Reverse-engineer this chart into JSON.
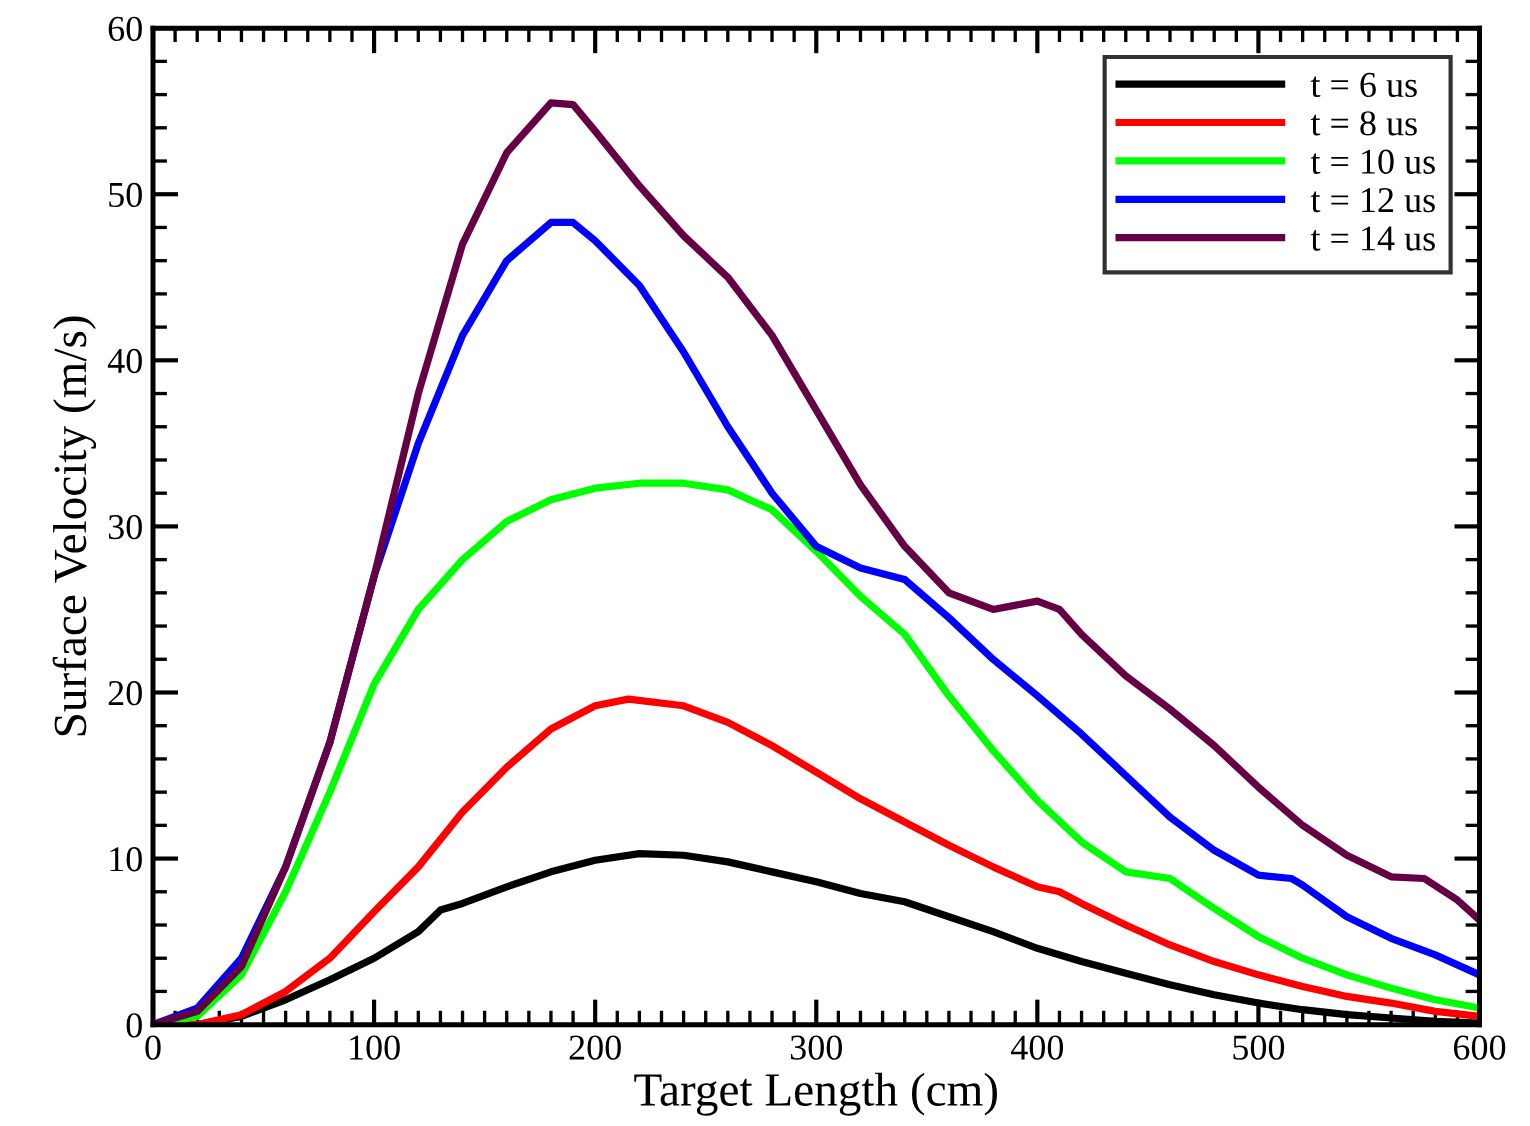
{
  "chart_data": {
    "type": "line",
    "xlabel": "Target Length (cm)",
    "ylabel": "Surface Velocity (m/s)",
    "xlim": [
      0,
      600
    ],
    "ylim": [
      0,
      60
    ],
    "xticks": [
      0,
      100,
      200,
      300,
      400,
      500,
      600
    ],
    "yticks": [
      0,
      10,
      20,
      30,
      40,
      50,
      60
    ],
    "grid": false,
    "legend": "top right",
    "marker": "none",
    "series": [
      {
        "name": "t = 6 us",
        "color": "#000000",
        "x": [
          0,
          20,
          40,
          60,
          80,
          100,
          120,
          130,
          140,
          160,
          180,
          200,
          220,
          240,
          260,
          280,
          300,
          320,
          340,
          360,
          380,
          400,
          420,
          440,
          460,
          480,
          500,
          520,
          540,
          560,
          580,
          600
        ],
        "values": [
          0,
          0,
          0.5,
          1.5,
          2.7,
          4.0,
          5.6,
          6.9,
          7.3,
          8.3,
          9.2,
          9.9,
          10.3,
          10.2,
          9.8,
          9.2,
          8.6,
          7.9,
          7.4,
          6.5,
          5.6,
          4.6,
          3.8,
          3.1,
          2.4,
          1.8,
          1.3,
          0.9,
          0.6,
          0.4,
          0.2,
          0.1
        ]
      },
      {
        "name": "t = 8 us",
        "color": "#ff0000",
        "x": [
          0,
          20,
          40,
          60,
          80,
          100,
          120,
          140,
          160,
          180,
          200,
          215,
          240,
          260,
          280,
          300,
          320,
          340,
          360,
          380,
          400,
          410,
          420,
          440,
          460,
          480,
          500,
          520,
          540,
          560,
          580,
          600
        ],
        "values": [
          0,
          0,
          0.6,
          2,
          4,
          6.8,
          9.5,
          12.8,
          15.5,
          17.8,
          19.2,
          19.6,
          19.2,
          18.2,
          16.8,
          15.2,
          13.6,
          12.2,
          10.8,
          9.5,
          8.3,
          8.0,
          7.3,
          6.0,
          4.8,
          3.8,
          3.0,
          2.3,
          1.7,
          1.3,
          0.8,
          0.5
        ]
      },
      {
        "name": "t = 10 us",
        "color": "#00ff00",
        "x": [
          0,
          20,
          40,
          60,
          80,
          100,
          120,
          140,
          160,
          180,
          200,
          220,
          240,
          260,
          280,
          300,
          320,
          340,
          360,
          380,
          400,
          420,
          440,
          460,
          480,
          500,
          520,
          540,
          560,
          580,
          600
        ],
        "values": [
          0,
          0.5,
          3,
          8,
          14,
          20.5,
          25,
          28,
          30.3,
          31.6,
          32.3,
          32.6,
          32.6,
          32.2,
          31,
          28.5,
          25.8,
          23.5,
          19.8,
          16.5,
          13.5,
          11.0,
          9.2,
          8.8,
          7.0,
          5.3,
          4.0,
          3.0,
          2.2,
          1.5,
          1.0
        ]
      },
      {
        "name": "t = 12 us",
        "color": "#0000ff",
        "x": [
          0,
          20,
          40,
          60,
          80,
          100,
          120,
          140,
          160,
          180,
          190,
          200,
          220,
          240,
          260,
          280,
          300,
          320,
          340,
          360,
          380,
          400,
          420,
          440,
          460,
          480,
          500,
          515,
          520,
          540,
          560,
          580,
          600
        ],
        "values": [
          0,
          1,
          4,
          9.5,
          17,
          27,
          35,
          41.5,
          46,
          48.3,
          48.3,
          47.2,
          44.5,
          40.5,
          36,
          32,
          28.8,
          27.5,
          26.8,
          24.5,
          22,
          19.8,
          17.5,
          15,
          12.5,
          10.5,
          9,
          8.8,
          8.4,
          6.5,
          5.2,
          4.2,
          3.0
        ]
      },
      {
        "name": "t = 14 us",
        "color": "#660044",
        "x": [
          0,
          20,
          40,
          60,
          80,
          100,
          120,
          140,
          160,
          180,
          190,
          200,
          220,
          240,
          260,
          280,
          300,
          320,
          340,
          360,
          380,
          400,
          410,
          420,
          440,
          460,
          480,
          500,
          520,
          540,
          560,
          575,
          590,
          600
        ],
        "values": [
          0,
          0.8,
          3.5,
          9.5,
          17,
          27,
          38,
          47,
          52.5,
          55.5,
          55.4,
          53.8,
          50.5,
          47.5,
          45,
          41.5,
          37,
          32.5,
          28.8,
          26,
          25,
          25.5,
          25,
          23.5,
          21,
          19,
          16.8,
          14.3,
          12.0,
          10.2,
          8.9,
          8.8,
          7.5,
          6.3
        ]
      }
    ]
  }
}
